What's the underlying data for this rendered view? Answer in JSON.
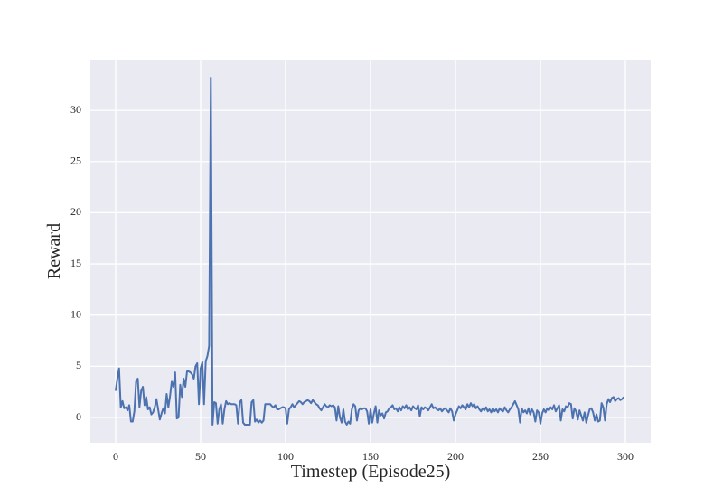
{
  "chart_data": {
    "type": "line",
    "xlabel": "Timestep (Episode25)",
    "ylabel": "Reward",
    "color": "#4c72b0",
    "grid": true,
    "xlim": [
      -14.9,
      314.9
    ],
    "ylim": [
      -2.47,
      34.95
    ],
    "xticks": [
      0,
      50,
      100,
      150,
      200,
      250,
      300
    ],
    "yticks": [
      0,
      5,
      10,
      15,
      20,
      25,
      30
    ],
    "x": [
      0,
      1,
      2,
      3,
      4,
      5,
      6,
      7,
      8,
      9,
      10,
      11,
      12,
      13,
      14,
      15,
      16,
      17,
      18,
      19,
      20,
      21,
      22,
      23,
      24,
      25,
      26,
      27,
      28,
      29,
      30,
      31,
      32,
      33,
      34,
      35,
      36,
      37,
      38,
      39,
      40,
      41,
      42,
      43,
      44,
      45,
      46,
      47,
      48,
      49,
      50,
      51,
      52,
      53,
      54,
      55,
      56,
      57,
      58,
      59,
      60,
      61,
      62,
      63,
      64,
      65,
      66,
      67,
      68,
      69,
      70,
      71,
      72,
      73,
      74,
      75,
      76,
      77,
      78,
      79,
      80,
      81,
      82,
      83,
      84,
      85,
      86,
      87,
      88,
      89,
      90,
      91,
      92,
      93,
      94,
      95,
      96,
      97,
      98,
      99,
      100,
      101,
      102,
      103,
      104,
      105,
      106,
      107,
      108,
      109,
      110,
      111,
      112,
      113,
      114,
      115,
      116,
      117,
      118,
      119,
      120,
      121,
      122,
      123,
      124,
      125,
      126,
      127,
      128,
      129,
      130,
      131,
      132,
      133,
      134,
      135,
      136,
      137,
      138,
      139,
      140,
      141,
      142,
      143,
      144,
      145,
      146,
      147,
      148,
      149,
      150,
      151,
      152,
      153,
      154,
      155,
      156,
      157,
      158,
      159,
      160,
      161,
      162,
      163,
      164,
      165,
      166,
      167,
      168,
      169,
      170,
      171,
      172,
      173,
      174,
      175,
      176,
      177,
      178,
      179,
      180,
      181,
      182,
      183,
      184,
      185,
      186,
      187,
      188,
      189,
      190,
      191,
      192,
      193,
      194,
      195,
      196,
      197,
      198,
      199,
      200,
      201,
      202,
      203,
      204,
      205,
      206,
      207,
      208,
      209,
      210,
      211,
      212,
      213,
      214,
      215,
      216,
      217,
      218,
      219,
      220,
      221,
      222,
      223,
      224,
      225,
      226,
      227,
      228,
      229,
      230,
      231,
      232,
      233,
      234,
      235,
      236,
      237,
      238,
      239,
      240,
      241,
      242,
      243,
      244,
      245,
      246,
      247,
      248,
      249,
      250,
      251,
      252,
      253,
      254,
      255,
      256,
      257,
      258,
      259,
      260,
      261,
      262,
      263,
      264,
      265,
      266,
      267,
      268,
      269,
      270,
      271,
      272,
      273,
      274,
      275,
      276,
      277,
      278,
      279,
      280,
      281,
      282,
      283,
      284,
      285,
      286,
      287,
      288,
      289,
      290,
      291,
      292,
      293,
      294,
      295,
      296,
      297,
      298,
      299
    ],
    "values": [
      2.6,
      3.8,
      4.8,
      1.0,
      1.6,
      0.9,
      1.0,
      0.7,
      1.2,
      -0.4,
      -0.4,
      0.6,
      3.5,
      3.8,
      1.0,
      2.6,
      3.0,
      1.2,
      2.0,
      0.8,
      1.0,
      0.3,
      0.5,
      1.0,
      1.8,
      0.8,
      -0.2,
      0.4,
      0.9,
      0.4,
      2.3,
      1.0,
      2.1,
      3.5,
      3.0,
      4.4,
      -0.1,
      0.0,
      3.2,
      2.0,
      3.8,
      3.0,
      4.5,
      4.5,
      4.4,
      4.2,
      3.8,
      5.0,
      5.3,
      1.3,
      4.8,
      5.4,
      1.3,
      5.5,
      6.0,
      7.0,
      33.2,
      -0.7,
      1.5,
      1.4,
      -0.6,
      0.8,
      1.3,
      -0.6,
      0.8,
      1.6,
      1.3,
      1.4,
      1.3,
      1.3,
      1.3,
      1.2,
      -0.6,
      1.5,
      1.7,
      -0.5,
      -0.7,
      -0.7,
      -0.7,
      -0.7,
      1.5,
      1.7,
      -0.4,
      -0.2,
      -0.5,
      -0.3,
      -0.5,
      -0.3,
      1.3,
      1.3,
      1.3,
      1.3,
      1.1,
      1.0,
      1.2,
      0.8,
      0.8,
      0.9,
      1.0,
      1.0,
      0.9,
      -0.6,
      0.8,
      1.0,
      1.3,
      1.0,
      1.2,
      1.4,
      1.6,
      1.5,
      1.3,
      1.5,
      1.6,
      1.7,
      1.6,
      1.4,
      1.7,
      1.5,
      1.3,
      1.2,
      0.9,
      0.7,
      1.0,
      1.3,
      1.1,
      1.0,
      1.2,
      1.1,
      1.2,
      1.0,
      -0.3,
      1.1,
      0.0,
      -0.5,
      0.8,
      -0.4,
      -0.7,
      -0.4,
      -0.6,
      0.8,
      1.3,
      1.1,
      -0.3,
      0.7,
      0.9,
      0.8,
      0.9,
      0.9,
      0.6,
      -0.6,
      0.8,
      -0.5,
      0.4,
      1.1,
      -0.5,
      0.7,
      0.2,
      0.4,
      -0.1,
      0.5,
      0.6,
      0.9,
      1.0,
      1.2,
      0.8,
      0.9,
      0.6,
      1.0,
      0.7,
      1.1,
      0.9,
      1.2,
      0.8,
      1.0,
      0.7,
      1.1,
      0.9,
      0.8,
      1.2,
      0.1,
      1.0,
      0.8,
      1.0,
      0.9,
      0.7,
      1.0,
      1.3,
      0.9,
      1.0,
      0.8,
      0.7,
      0.9,
      0.6,
      0.8,
      0.9,
      0.7,
      0.5,
      0.9,
      0.6,
      -0.3,
      0.3,
      0.7,
      1.1,
      0.9,
      1.2,
      1.0,
      0.8,
      1.3,
      1.0,
      1.4,
      1.1,
      1.3,
      0.9,
      1.1,
      0.8,
      0.6,
      0.9,
      0.7,
      1.0,
      0.6,
      0.8,
      0.5,
      0.9,
      0.6,
      0.8,
      0.5,
      0.9,
      0.7,
      0.6,
      1.0,
      0.7,
      0.5,
      0.8,
      1.0,
      1.3,
      1.6,
      1.2,
      0.8,
      -0.5,
      0.9,
      0.5,
      0.7,
      0.4,
      0.9,
      0.3,
      0.8,
      0.5,
      -0.4,
      0.7,
      0.5,
      -0.6,
      0.4,
      0.8,
      0.5,
      0.9,
      0.7,
      1.0,
      0.8,
      1.2,
      0.6,
      0.9,
      1.2,
      -0.3,
      0.8,
      0.6,
      1.1,
      1.0,
      1.4,
      1.3,
      -0.1,
      0.9,
      0.6,
      -0.2,
      0.7,
      0.2,
      -0.3,
      0.5,
      -0.5,
      0.2,
      0.8,
      0.9,
      0.5,
      -0.3,
      0.3,
      -0.4,
      -0.3,
      1.4,
      1.0,
      -0.3,
      1.3,
      1.8,
      1.5,
      1.9,
      2.0,
      1.6,
      1.8,
      1.9,
      1.7,
      1.8,
      2.0
    ]
  }
}
